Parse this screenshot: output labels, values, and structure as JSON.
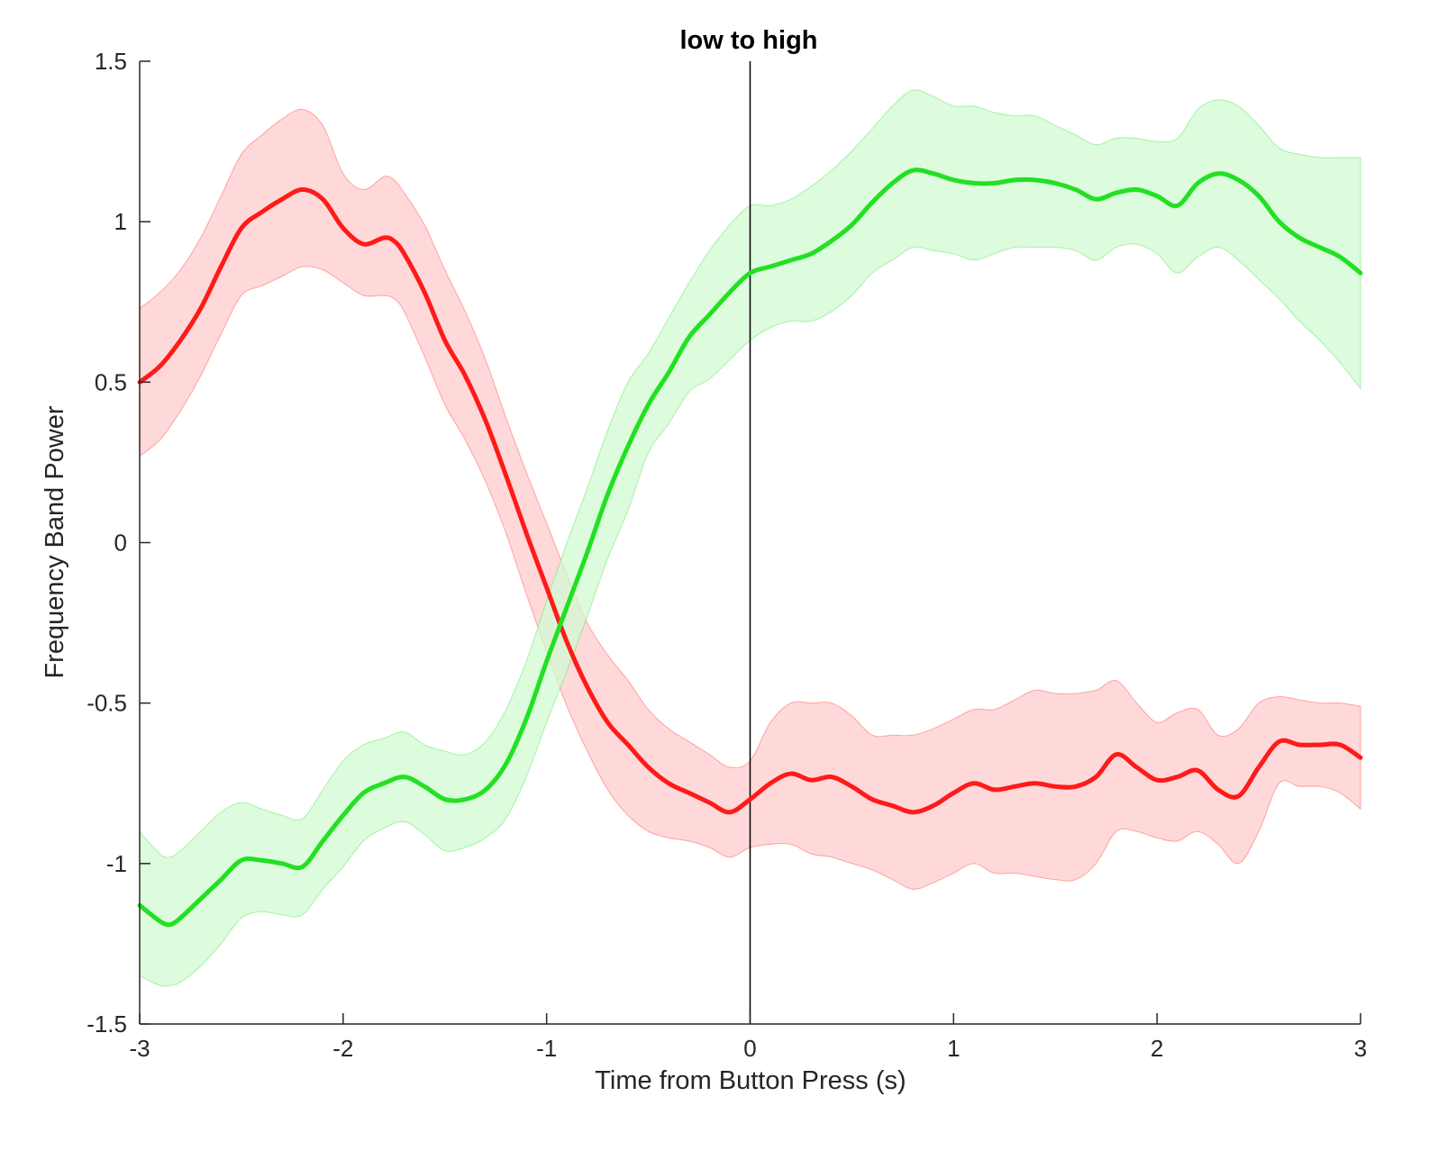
{
  "chart_data": {
    "type": "line",
    "title": "low to high",
    "xlabel": "Time from Button Press (s)",
    "ylabel": "Frequency Band Power",
    "xlim": [
      -3,
      3
    ],
    "ylim": [
      -1.5,
      1.5
    ],
    "xticks": [
      -3,
      -2,
      -1,
      0,
      1,
      2,
      3
    ],
    "xtick_labels": [
      "-3",
      "-2",
      "-1",
      "0",
      "1",
      "2",
      "3"
    ],
    "yticks": [
      -1.5,
      -1,
      -0.5,
      0,
      0.5,
      1,
      1.5
    ],
    "ytick_labels": [
      "-1.5",
      "-1",
      "-0.5",
      "0",
      "0.5",
      "1",
      "1.5"
    ],
    "grid": false,
    "legend": "none",
    "vertical_line_x": 0,
    "series": [
      {
        "color": "#ff1a1a",
        "band_color": "#ffcccc",
        "x": [
          -3.0,
          -2.9,
          -2.8,
          -2.7,
          -2.6,
          -2.5,
          -2.4,
          -2.3,
          -2.2,
          -2.1,
          -2.0,
          -1.9,
          -1.8,
          -1.75,
          -1.7,
          -1.6,
          -1.5,
          -1.4,
          -1.3,
          -1.2,
          -1.1,
          -1.0,
          -0.9,
          -0.8,
          -0.7,
          -0.6,
          -0.5,
          -0.4,
          -0.3,
          -0.2,
          -0.1,
          0.0,
          0.1,
          0.2,
          0.3,
          0.4,
          0.5,
          0.6,
          0.7,
          0.8,
          0.9,
          1.0,
          1.1,
          1.2,
          1.3,
          1.4,
          1.5,
          1.6,
          1.7,
          1.8,
          1.9,
          2.0,
          2.1,
          2.2,
          2.3,
          2.4,
          2.5,
          2.6,
          2.7,
          2.8,
          2.9,
          3.0
        ],
        "y": [
          0.5,
          0.55,
          0.63,
          0.73,
          0.86,
          0.98,
          1.03,
          1.07,
          1.1,
          1.07,
          0.98,
          0.93,
          0.95,
          0.94,
          0.9,
          0.78,
          0.63,
          0.52,
          0.38,
          0.21,
          0.03,
          -0.14,
          -0.31,
          -0.45,
          -0.56,
          -0.63,
          -0.7,
          -0.75,
          -0.78,
          -0.81,
          -0.84,
          -0.8,
          -0.75,
          -0.72,
          -0.74,
          -0.73,
          -0.76,
          -0.8,
          -0.82,
          -0.84,
          -0.82,
          -0.78,
          -0.75,
          -0.77,
          -0.76,
          -0.75,
          -0.76,
          -0.76,
          -0.73,
          -0.66,
          -0.7,
          -0.74,
          -0.73,
          -0.71,
          -0.77,
          -0.79,
          -0.7,
          -0.62,
          -0.63,
          -0.63,
          -0.63,
          -0.67
        ],
        "upper": [
          0.73,
          0.78,
          0.85,
          0.95,
          1.08,
          1.21,
          1.27,
          1.32,
          1.35,
          1.3,
          1.15,
          1.1,
          1.14,
          1.13,
          1.09,
          0.99,
          0.85,
          0.72,
          0.57,
          0.39,
          0.22,
          0.06,
          -0.1,
          -0.25,
          -0.35,
          -0.43,
          -0.52,
          -0.58,
          -0.62,
          -0.66,
          -0.7,
          -0.68,
          -0.56,
          -0.5,
          -0.5,
          -0.5,
          -0.54,
          -0.6,
          -0.6,
          -0.6,
          -0.58,
          -0.55,
          -0.52,
          -0.52,
          -0.49,
          -0.46,
          -0.47,
          -0.47,
          -0.46,
          -0.43,
          -0.5,
          -0.56,
          -0.53,
          -0.52,
          -0.6,
          -0.58,
          -0.5,
          -0.48,
          -0.49,
          -0.5,
          -0.5,
          -0.51
        ],
        "lower": [
          0.27,
          0.32,
          0.41,
          0.52,
          0.65,
          0.77,
          0.8,
          0.83,
          0.86,
          0.85,
          0.81,
          0.77,
          0.77,
          0.76,
          0.72,
          0.58,
          0.43,
          0.32,
          0.19,
          0.03,
          -0.16,
          -0.34,
          -0.51,
          -0.65,
          -0.77,
          -0.85,
          -0.9,
          -0.92,
          -0.93,
          -0.95,
          -0.98,
          -0.95,
          -0.94,
          -0.94,
          -0.97,
          -0.98,
          -1.0,
          -1.02,
          -1.05,
          -1.08,
          -1.06,
          -1.03,
          -1.0,
          -1.03,
          -1.03,
          -1.04,
          -1.05,
          -1.05,
          -1.0,
          -0.9,
          -0.9,
          -0.92,
          -0.93,
          -0.9,
          -0.94,
          -1.0,
          -0.9,
          -0.75,
          -0.76,
          -0.76,
          -0.78,
          -0.83
        ]
      },
      {
        "color": "#22e022",
        "band_color": "#d2fad2",
        "x": [
          -3.0,
          -2.9,
          -2.85,
          -2.8,
          -2.7,
          -2.6,
          -2.5,
          -2.4,
          -2.3,
          -2.2,
          -2.1,
          -2.0,
          -1.9,
          -1.8,
          -1.7,
          -1.6,
          -1.5,
          -1.4,
          -1.3,
          -1.2,
          -1.1,
          -1.0,
          -0.9,
          -0.8,
          -0.7,
          -0.6,
          -0.5,
          -0.4,
          -0.3,
          -0.2,
          -0.1,
          0.0,
          0.1,
          0.2,
          0.3,
          0.4,
          0.5,
          0.6,
          0.7,
          0.8,
          0.9,
          1.0,
          1.1,
          1.2,
          1.3,
          1.4,
          1.5,
          1.6,
          1.7,
          1.8,
          1.9,
          2.0,
          2.1,
          2.2,
          2.3,
          2.4,
          2.5,
          2.6,
          2.7,
          2.8,
          2.9,
          3.0
        ],
        "y": [
          -1.13,
          -1.18,
          -1.19,
          -1.17,
          -1.11,
          -1.05,
          -0.99,
          -0.99,
          -1.0,
          -1.01,
          -0.93,
          -0.85,
          -0.78,
          -0.75,
          -0.73,
          -0.76,
          -0.8,
          -0.8,
          -0.77,
          -0.69,
          -0.55,
          -0.37,
          -0.2,
          -0.03,
          0.15,
          0.3,
          0.43,
          0.53,
          0.64,
          0.71,
          0.78,
          0.84,
          0.86,
          0.88,
          0.9,
          0.94,
          0.99,
          1.06,
          1.12,
          1.16,
          1.15,
          1.13,
          1.12,
          1.12,
          1.13,
          1.13,
          1.12,
          1.1,
          1.07,
          1.09,
          1.1,
          1.08,
          1.05,
          1.12,
          1.15,
          1.13,
          1.08,
          1.0,
          0.95,
          0.92,
          0.89,
          0.84
        ],
        "upper": [
          -0.9,
          -0.97,
          -0.98,
          -0.96,
          -0.9,
          -0.84,
          -0.81,
          -0.83,
          -0.85,
          -0.86,
          -0.77,
          -0.68,
          -0.63,
          -0.61,
          -0.59,
          -0.63,
          -0.65,
          -0.66,
          -0.62,
          -0.52,
          -0.37,
          -0.18,
          -0.0,
          0.17,
          0.35,
          0.5,
          0.59,
          0.7,
          0.81,
          0.91,
          0.99,
          1.05,
          1.05,
          1.07,
          1.11,
          1.16,
          1.22,
          1.29,
          1.36,
          1.41,
          1.39,
          1.36,
          1.36,
          1.34,
          1.33,
          1.33,
          1.3,
          1.27,
          1.24,
          1.26,
          1.26,
          1.25,
          1.26,
          1.35,
          1.38,
          1.36,
          1.3,
          1.23,
          1.21,
          1.2,
          1.2,
          1.2
        ],
        "lower": [
          -1.35,
          -1.38,
          -1.38,
          -1.37,
          -1.32,
          -1.25,
          -1.17,
          -1.15,
          -1.16,
          -1.16,
          -1.08,
          -1.01,
          -0.93,
          -0.89,
          -0.87,
          -0.91,
          -0.96,
          -0.95,
          -0.92,
          -0.86,
          -0.73,
          -0.56,
          -0.4,
          -0.23,
          -0.05,
          0.1,
          0.28,
          0.37,
          0.47,
          0.51,
          0.57,
          0.63,
          0.67,
          0.69,
          0.69,
          0.72,
          0.77,
          0.84,
          0.88,
          0.92,
          0.91,
          0.9,
          0.88,
          0.9,
          0.92,
          0.92,
          0.92,
          0.91,
          0.88,
          0.92,
          0.93,
          0.9,
          0.84,
          0.89,
          0.92,
          0.88,
          0.82,
          0.76,
          0.69,
          0.63,
          0.56,
          0.48
        ]
      }
    ]
  }
}
